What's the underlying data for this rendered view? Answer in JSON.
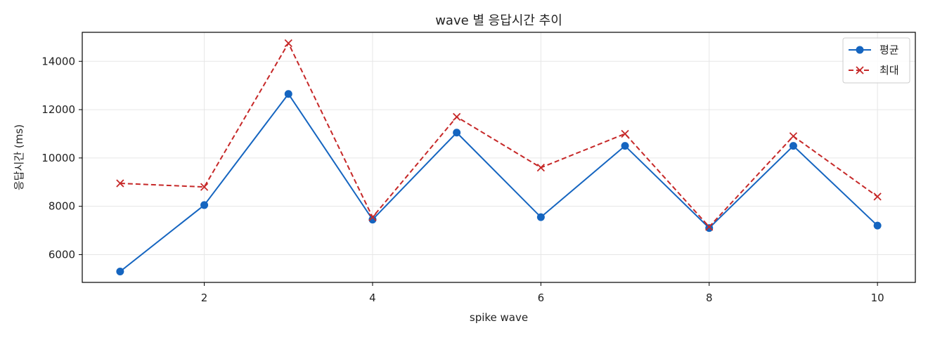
{
  "chart_data": {
    "type": "line",
    "title": "wave 별 응답시간 추이",
    "xlabel": "spike wave",
    "ylabel": "응답시간 (ms)",
    "x": [
      1,
      2,
      3,
      4,
      5,
      6,
      7,
      8,
      9,
      10
    ],
    "xlim": [
      0.55,
      10.45
    ],
    "ylim": [
      4850,
      15200
    ],
    "xticks": [
      2,
      4,
      6,
      8,
      10
    ],
    "yticks": [
      6000,
      8000,
      10000,
      12000,
      14000
    ],
    "grid": true,
    "legend_position": "top-right",
    "series": [
      {
        "name": "평균",
        "color": "#1565c0",
        "line_style": "solid",
        "marker": "circle",
        "values": [
          5300,
          8050,
          12650,
          7450,
          11050,
          7550,
          10500,
          7100,
          10500,
          7200
        ]
      },
      {
        "name": "최대",
        "color": "#c62828",
        "line_style": "dashed",
        "marker": "x",
        "values": [
          8950,
          8800,
          14750,
          7550,
          11700,
          9600,
          11000,
          7150,
          10900,
          8400
        ]
      }
    ]
  }
}
